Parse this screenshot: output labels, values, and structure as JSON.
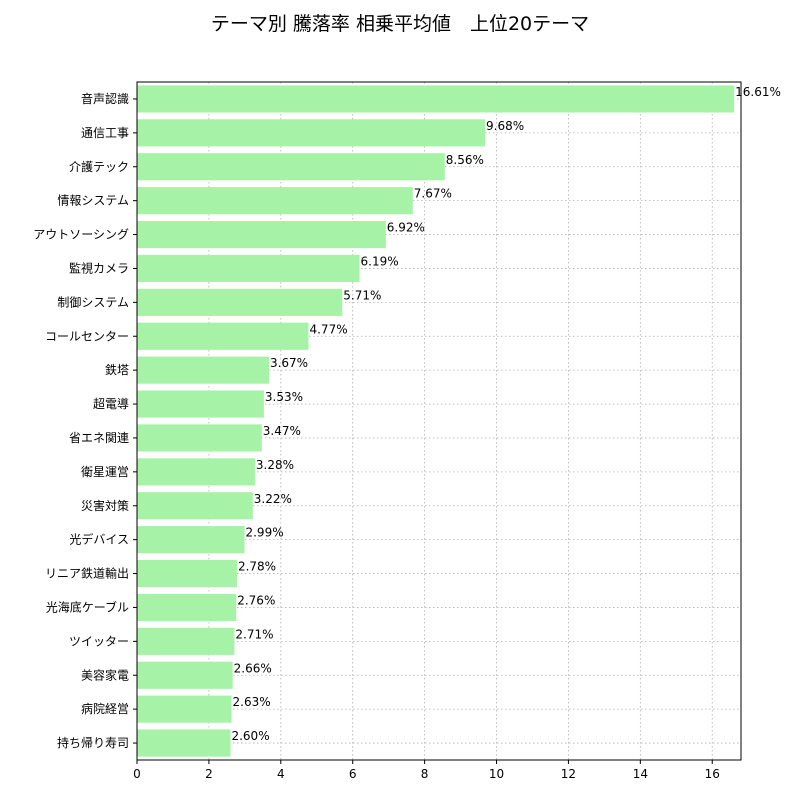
{
  "chart_data": {
    "type": "bar",
    "orientation": "horizontal",
    "title": "テーマ別 騰落率 相乗平均値　上位20テーマ",
    "xlabel": "",
    "ylabel": "",
    "xlim": [
      0,
      16.8
    ],
    "x_ticks": [
      0,
      2,
      4,
      6,
      8,
      10,
      12,
      14,
      16
    ],
    "x_tick_labels": [
      "0",
      "2",
      "4",
      "6",
      "8",
      "10",
      "12",
      "14",
      "16"
    ],
    "grid": true,
    "legend": "none",
    "bar_color": "#a6f2a6",
    "categories": [
      "音声認識",
      "通信工事",
      "介護テック",
      "情報システム",
      "アウトソーシング",
      "監視カメラ",
      "制御システム",
      "コールセンター",
      "鉄塔",
      "超電導",
      "省エネ関連",
      "衛星運営",
      "災害対策",
      "光デバイス",
      "リニア鉄道輸出",
      "光海底ケーブル",
      "ツイッター",
      "美容家電",
      "病院経営",
      "持ち帰り寿司"
    ],
    "values": [
      16.61,
      9.68,
      8.56,
      7.67,
      6.92,
      6.19,
      5.71,
      4.77,
      3.67,
      3.53,
      3.47,
      3.28,
      3.22,
      2.99,
      2.78,
      2.76,
      2.71,
      2.66,
      2.63,
      2.6
    ],
    "data_labels": [
      "16.61%",
      "9.68%",
      "8.56%",
      "7.67%",
      "6.92%",
      "6.19%",
      "5.71%",
      "4.77%",
      "3.67%",
      "3.53%",
      "3.47%",
      "3.28%",
      "3.22%",
      "2.99%",
      "2.78%",
      "2.76%",
      "2.71%",
      "2.66%",
      "2.63%",
      "2.60%"
    ]
  }
}
